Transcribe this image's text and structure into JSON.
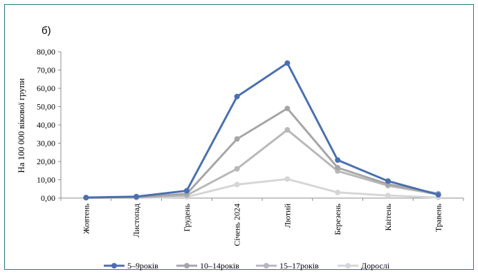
{
  "panel_label": "б)",
  "chart_data": {
    "type": "line",
    "title": "",
    "xlabel": "",
    "ylabel": "На 100 000 вікової групи",
    "categories": [
      "Жовтень",
      "Листопад",
      "Грудень",
      "Січень 2024",
      "Лютий",
      "Березень",
      "Квітень",
      "Травень"
    ],
    "y_ticks": [
      "0,00",
      "10,00",
      "20,00",
      "30,00",
      "40,00",
      "50,00",
      "60,00",
      "70,00",
      "80,00"
    ],
    "ylim": [
      0,
      80
    ],
    "grid": false,
    "legend_position": "bottom",
    "series": [
      {
        "name": "5–9років",
        "color": "#4a6fb0",
        "values": [
          0.3,
          0.8,
          4.0,
          55.5,
          73.8,
          20.8,
          9.3,
          1.8
        ]
      },
      {
        "name": "10–14років",
        "color": "#a6a6a6",
        "values": [
          0.2,
          0.6,
          2.3,
          32.3,
          49.0,
          16.6,
          7.6,
          2.4
        ]
      },
      {
        "name": "15–17років",
        "color": "#b8b8b8",
        "values": [
          0.2,
          0.4,
          1.5,
          16.0,
          37.3,
          14.8,
          6.8,
          2.0
        ]
      },
      {
        "name": "Дорослі",
        "color": "#d6d6d6",
        "values": [
          0.1,
          0.2,
          0.6,
          7.4,
          10.4,
          3.1,
          1.4,
          0.3
        ]
      }
    ]
  }
}
